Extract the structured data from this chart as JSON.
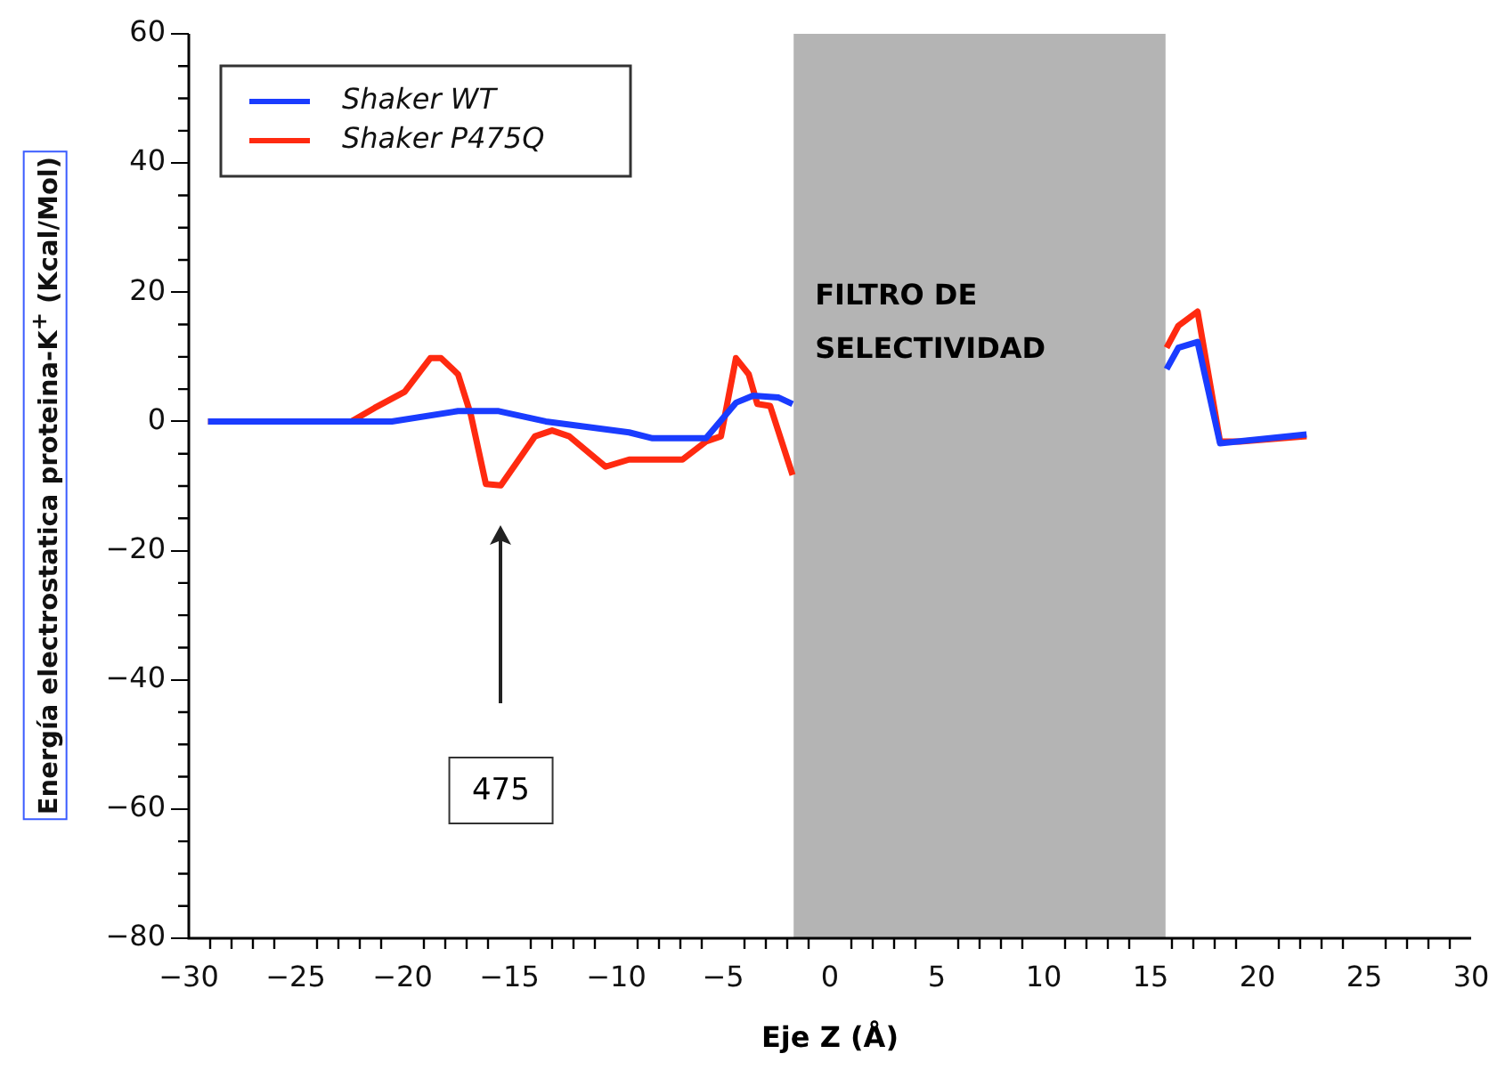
{
  "chart_data": {
    "type": "line",
    "xlabel": "Eje Z (Å)",
    "ylabel": "Energía electrostatica proteina-K$^{+}$ (Kcal/Mol)",
    "series": [
      {
        "name": "Shaker WT",
        "color": "#1a3cff",
        "x": [
          -29.1,
          -20.5,
          -17.4,
          -15.5,
          -13.3,
          -9.4,
          -8.3,
          -5.8,
          -4.4,
          -3.6,
          -2.4,
          -1.75,
          7,
          15.75,
          16.3,
          17.2,
          18.25,
          22.3
        ],
        "values": [
          0,
          0,
          1.6,
          1.6,
          0,
          -1.7,
          -2.6,
          -2.6,
          2.9,
          4,
          3.7,
          2.7,
          null,
          8.1,
          11.4,
          12.3,
          -3.4,
          -2
        ]
      },
      {
        "name": "Shaker P475Q",
        "color": "#ff2a10",
        "x": [
          -29.1,
          -22.4,
          -21.3,
          -19.9,
          -18.7,
          -18.2,
          -17.4,
          -16.8,
          -16.1,
          -15.4,
          -13.8,
          -13,
          -12.2,
          -10.5,
          -9.4,
          -6.9,
          -5.8,
          -5.1,
          -4.4,
          -3.8,
          -3.4,
          -2.8,
          -1.75,
          7,
          15.75,
          16.3,
          17.2,
          18.25,
          19.2,
          22.3
        ],
        "values": [
          0,
          0,
          2.1,
          4.6,
          9.8,
          9.8,
          7.3,
          1,
          -9.7,
          -9.9,
          -2.3,
          -1.4,
          -2.3,
          -7,
          -5.9,
          -5.9,
          -3.1,
          -2.3,
          9.8,
          7.3,
          2.7,
          2.4,
          -8.3,
          null,
          11.4,
          14.8,
          17,
          -3.1,
          -3.1,
          -2.3
        ]
      }
    ],
    "bands": [
      {
        "axis": "x",
        "from": -1.7,
        "to": 15.7,
        "label": "FILTRO DE SELECTIVIDAD",
        "color": "#b4b4b4"
      }
    ],
    "annotations": [
      "475"
    ],
    "xlim": [
      -30,
      30
    ],
    "xticks": [
      -30,
      -25,
      -20,
      -15,
      -10,
      -5,
      0,
      5,
      10,
      15,
      20,
      25,
      30
    ],
    "ylim": [
      -80,
      60
    ],
    "yticks": [
      -80,
      -60,
      -40,
      -20,
      0,
      20,
      40,
      60
    ],
    "grid": false,
    "legend": "top left",
    "marker": "none",
    "line_style": "solid"
  }
}
